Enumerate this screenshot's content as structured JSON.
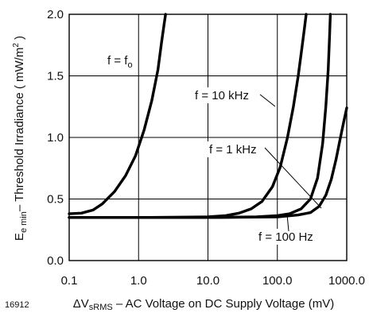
{
  "figure_id": "16912",
  "chart_data": {
    "type": "line",
    "title": "",
    "xlabel": {
      "prefix": "ΔV",
      "sub": "sRMS",
      "suffix": " – AC Voltage on DC Supply Voltage (mV)"
    },
    "ylabel": {
      "prefix": "E",
      "sub": "e min",
      "middle": "– Threshold Irradiance ( mW/m",
      "sup": "2",
      "suffix": " )"
    },
    "x_scale": "log",
    "xlim": [
      0.1,
      1000
    ],
    "ylim": [
      0,
      2.0
    ],
    "x_ticks": [
      0.1,
      1,
      10,
      100,
      1000
    ],
    "x_tick_labels": [
      "0.1",
      "1.0",
      "10.0",
      "100.0",
      "1000.0"
    ],
    "y_ticks": [
      0,
      0.5,
      1.0,
      1.5,
      2.0
    ],
    "y_tick_labels": [
      "0.0",
      "0.5",
      "1.0",
      "1.5",
      "2.0"
    ],
    "grid": true,
    "legend": "none",
    "series": [
      {
        "name": "f = fo",
        "label": {
          "prefix": "f = f",
          "sub": "o"
        },
        "x": [
          0.1,
          0.15,
          0.22,
          0.3,
          0.45,
          0.65,
          0.9,
          1.2,
          1.55,
          1.9,
          2.15,
          2.35,
          2.45
        ],
        "y": [
          0.38,
          0.385,
          0.41,
          0.46,
          0.56,
          0.69,
          0.85,
          1.06,
          1.3,
          1.55,
          1.78,
          1.93,
          2.0
        ]
      },
      {
        "name": "f = 10 kHz",
        "label": {
          "prefix": "f = 10 kHz"
        },
        "x": [
          0.1,
          1,
          10,
          18,
          28,
          42,
          60,
          85,
          110,
          140,
          170,
          200,
          225,
          245,
          260
        ],
        "y": [
          0.35,
          0.35,
          0.355,
          0.365,
          0.385,
          0.42,
          0.48,
          0.6,
          0.76,
          1.0,
          1.25,
          1.5,
          1.72,
          1.88,
          2.0
        ]
      },
      {
        "name": "f = 1 kHz",
        "label": {
          "prefix": "f = 1 kHz"
        },
        "x": [
          0.1,
          1,
          10,
          50,
          100,
          150,
          220,
          300,
          380,
          450,
          500,
          540,
          565,
          580
        ],
        "y": [
          0.35,
          0.35,
          0.35,
          0.355,
          0.365,
          0.38,
          0.42,
          0.5,
          0.67,
          0.95,
          1.25,
          1.55,
          1.82,
          2.0
        ]
      },
      {
        "name": "f = 100 Hz",
        "label": {
          "prefix": "f = 100 Hz"
        },
        "x": [
          0.1,
          1,
          10,
          100,
          200,
          300,
          400,
          500,
          600,
          700,
          800,
          900,
          1000
        ],
        "y": [
          0.35,
          0.35,
          0.35,
          0.355,
          0.37,
          0.39,
          0.44,
          0.53,
          0.66,
          0.82,
          0.98,
          1.12,
          1.24
        ]
      }
    ]
  }
}
